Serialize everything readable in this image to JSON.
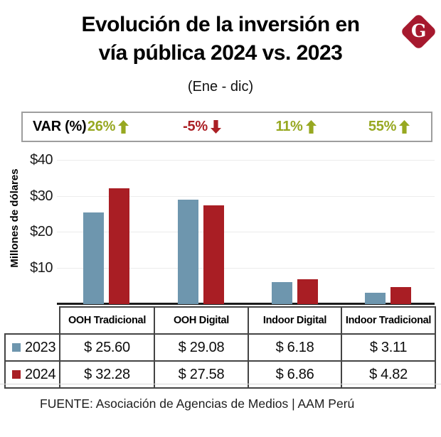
{
  "header": {
    "title_line1": "Evolución de la inversión en",
    "title_line2": "vía pública 2024 vs. 2023",
    "subtitle": "(Ene - dic)",
    "logo_letter": "G",
    "logo_color": "#A6192E"
  },
  "var_row": {
    "label": "VAR (%)",
    "up_color": "#97A821",
    "down_color": "#AB1F24",
    "values": [
      {
        "text": "26%",
        "direction": "up"
      },
      {
        "text": "-5%",
        "direction": "down"
      },
      {
        "text": "11%",
        "direction": "up"
      },
      {
        "text": "55%",
        "direction": "up"
      }
    ]
  },
  "chart_data": {
    "type": "bar",
    "title": "Evolución de la inversión en vía pública 2024 vs. 2023",
    "subtitle": "(Ene - dic)",
    "ylabel": "Millones de dólares",
    "ylim": [
      0,
      40
    ],
    "yticks": [
      "$40",
      "$30",
      "$20",
      "$10"
    ],
    "grid": true,
    "legend_position": "table-left",
    "categories": [
      "OOH Tradicional",
      "OOH Digital",
      "Indoor Digital",
      "Indoor Tradicional"
    ],
    "series": [
      {
        "name": "2023",
        "color": "#6E96AE",
        "values": [
          25.6,
          29.08,
          6.18,
          3.11
        ],
        "display": [
          "$ 25.60",
          "$ 29.08",
          "$ 6.18",
          "$ 3.11"
        ]
      },
      {
        "name": "2024",
        "color": "#A91E24",
        "values": [
          32.28,
          27.58,
          6.86,
          4.82
        ],
        "display": [
          "$ 32.28",
          "$ 27.58",
          "$ 6.86",
          "$ 4.82"
        ]
      }
    ],
    "var_percentages": [
      "26%",
      "-5%",
      "11%",
      "55%"
    ]
  },
  "footer": {
    "source": "FUENTE: Asociación de Agencias de Medios | AAM Perú"
  }
}
